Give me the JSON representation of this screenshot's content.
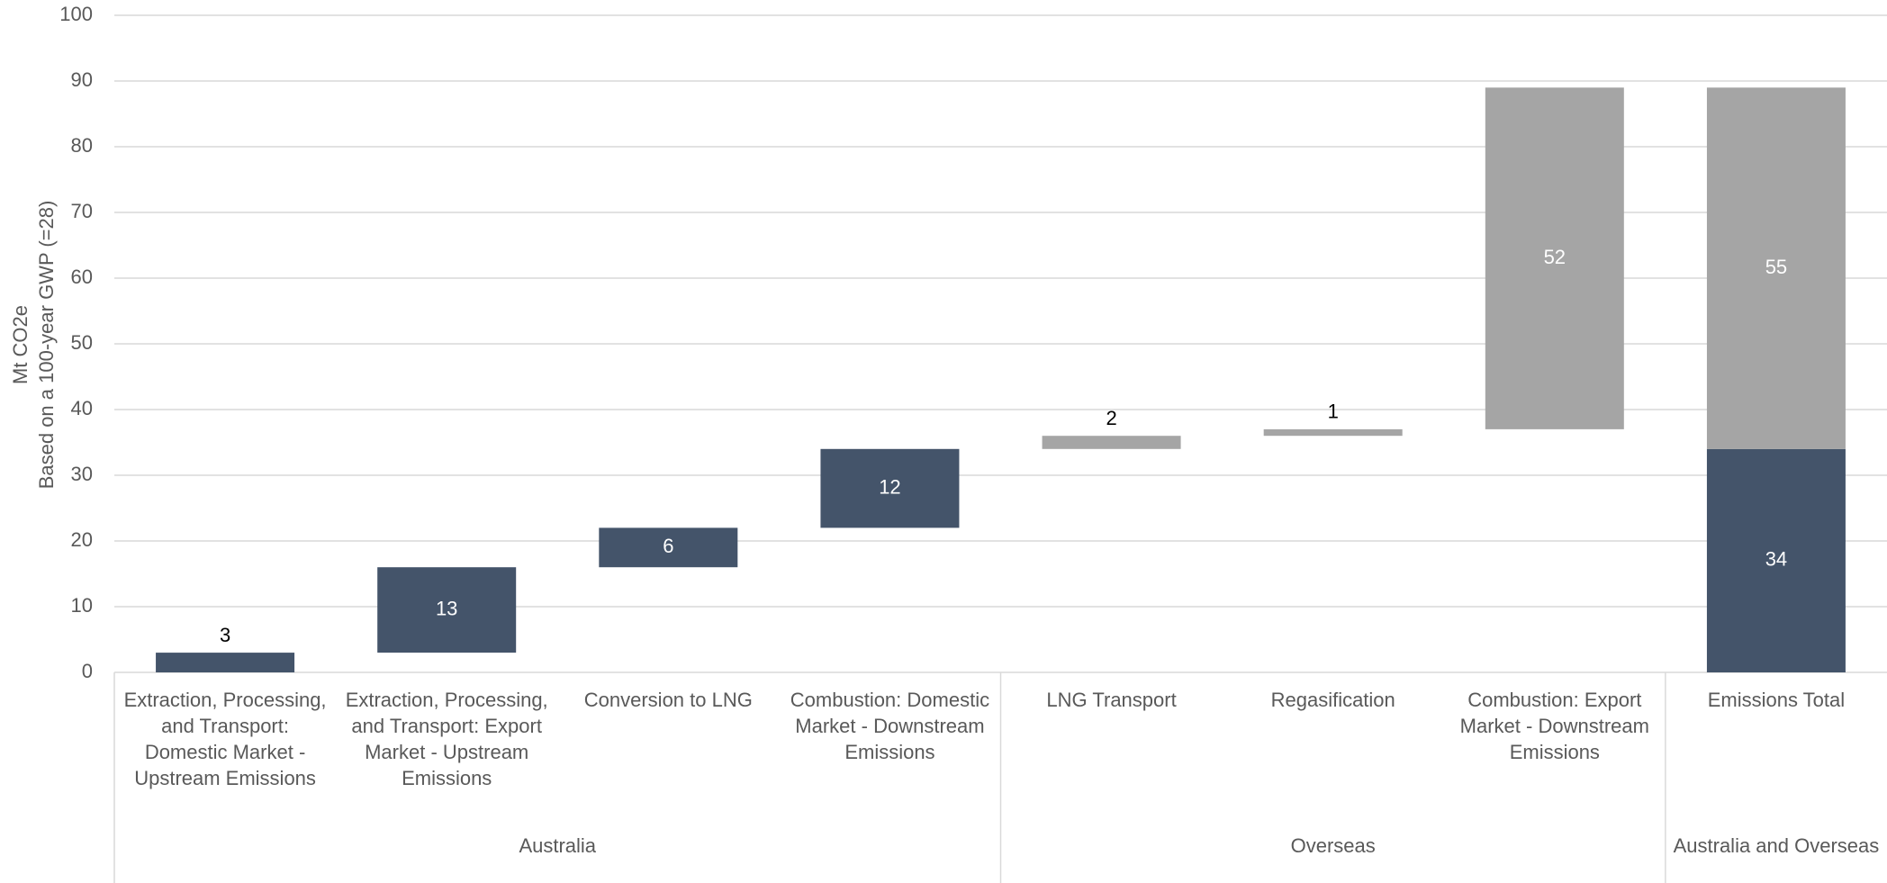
{
  "chart_data": {
    "type": "waterfall",
    "ylabel": [
      "Mt CO2e",
      "Based on a 100-year GWP (=28)"
    ],
    "categories": [
      "Extraction, Processing, and Transport: Domestic Market - Upstream Emissions",
      "Extraction, Processing, and Transport: Export Market - Upstream Emissions",
      "Conversion to LNG",
      "Combustion: Domestic Market - Downstream Emissions",
      "LNG Transport",
      "Regasification",
      "Combustion: Export Market - Downstream Emissions",
      "Emissions Total"
    ],
    "groups": [
      {
        "label": "Australia",
        "span": 4
      },
      {
        "label": "Overseas",
        "span": 3
      },
      {
        "label": "Australia and Overseas",
        "span": 1
      }
    ],
    "is_total": [
      false,
      false,
      false,
      false,
      false,
      false,
      false,
      true
    ],
    "series": [
      {
        "color": "#44546a",
        "values": [
          3,
          13,
          6,
          12,
          null,
          null,
          null,
          34
        ]
      },
      {
        "color": "#a5a5a5",
        "values": [
          null,
          null,
          null,
          null,
          2,
          1,
          52,
          55
        ]
      }
    ],
    "ylim": [
      0,
      100
    ],
    "yticks": [
      0,
      10,
      20,
      30,
      40,
      50,
      60,
      70,
      80,
      90,
      100
    ],
    "grid": true
  }
}
